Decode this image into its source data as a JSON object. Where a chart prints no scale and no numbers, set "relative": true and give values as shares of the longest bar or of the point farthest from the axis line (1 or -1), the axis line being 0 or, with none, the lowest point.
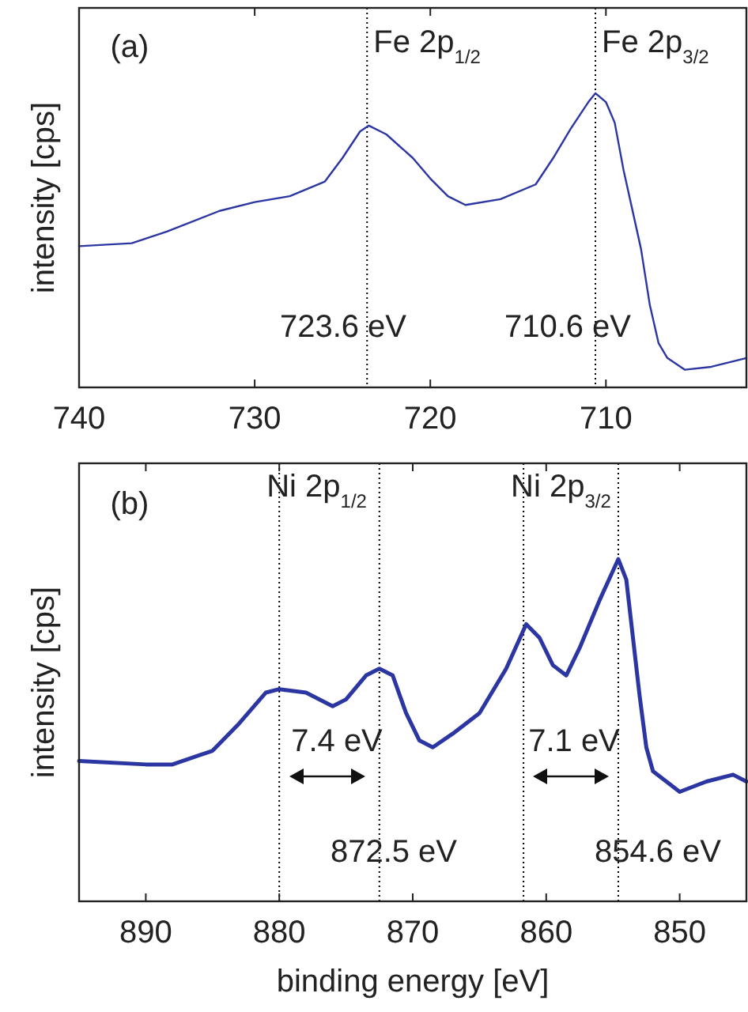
{
  "chart_data": [
    {
      "type": "line",
      "ylabel": "intensity [cps]",
      "relative": true,
      "xlim": [
        740,
        702
      ],
      "xticks": [
        740,
        730,
        720,
        710
      ],
      "x": [
        740,
        737,
        735,
        732,
        730,
        728,
        726,
        725,
        724,
        723.5,
        722.5,
        721,
        720,
        719,
        718,
        716,
        714,
        713,
        712,
        711,
        710.6,
        710,
        709.5,
        709,
        708,
        707.5,
        707,
        706.5,
        705.5,
        704,
        702
      ],
      "series": [
        {
          "color": "#2b36a3",
          "values": [
            0.48,
            0.49,
            0.53,
            0.6,
            0.63,
            0.65,
            0.7,
            0.78,
            0.87,
            0.89,
            0.86,
            0.78,
            0.71,
            0.65,
            0.62,
            0.64,
            0.69,
            0.78,
            0.88,
            0.97,
            1,
            0.97,
            0.9,
            0.74,
            0.47,
            0.28,
            0.15,
            0.1,
            0.06,
            0.07,
            0.1
          ]
        }
      ],
      "ref_lines": [
        {
          "axis": "x",
          "value": 723.6,
          "line_style": "dotted",
          "color": "#000000",
          "label": "Fe 2p$_{1/2}$"
        },
        {
          "axis": "x",
          "value": 710.6,
          "line_style": "dotted",
          "color": "#000000",
          "label": "Fe 2p$_{3/2}$"
        }
      ],
      "annotations": [
        "(a)",
        "723.6 eV",
        "710.6 eV"
      ]
    },
    {
      "type": "line",
      "xlabel": "binding energy [eV]",
      "ylabel": "intensity [cps]",
      "relative": true,
      "xlim": [
        895,
        845
      ],
      "xticks": [
        890,
        880,
        870,
        860,
        850
      ],
      "x": [
        895,
        890,
        888,
        885,
        883,
        881,
        880,
        878,
        876,
        875,
        873.5,
        872.5,
        871.5,
        870.5,
        869.5,
        868.5,
        867,
        865,
        863,
        861.5,
        860.5,
        859.5,
        858.5,
        857.5,
        856,
        854.6,
        854,
        853,
        852.5,
        852,
        851,
        850,
        848,
        846,
        845
      ],
      "series": [
        {
          "color": "#2b36a3",
          "values": [
            0.41,
            0.4,
            0.4,
            0.44,
            0.52,
            0.61,
            0.62,
            0.61,
            0.57,
            0.59,
            0.66,
            0.68,
            0.66,
            0.55,
            0.47,
            0.45,
            0.49,
            0.55,
            0.68,
            0.81,
            0.77,
            0.69,
            0.66,
            0.74,
            0.88,
            1,
            0.94,
            0.6,
            0.45,
            0.38,
            0.35,
            0.32,
            0.35,
            0.37,
            0.35
          ]
        }
      ],
      "ref_lines": [
        {
          "axis": "x",
          "value": 880,
          "line_style": "dotted",
          "color": "#000000",
          "label": "Ni 2p$_{1/2}$"
        },
        {
          "axis": "x",
          "value": 872.5,
          "line_style": "dotted",
          "color": "#000000"
        },
        {
          "axis": "x",
          "value": 861.7,
          "line_style": "dotted",
          "color": "#000000",
          "label": "Ni 2p$_{3/2}$"
        },
        {
          "axis": "x",
          "value": 854.6,
          "line_style": "dotted",
          "color": "#000000"
        }
      ],
      "annotations": [
        "(b)",
        "7.4 eV",
        "7.1 eV",
        "872.5 eV",
        "854.6 eV"
      ]
    }
  ]
}
